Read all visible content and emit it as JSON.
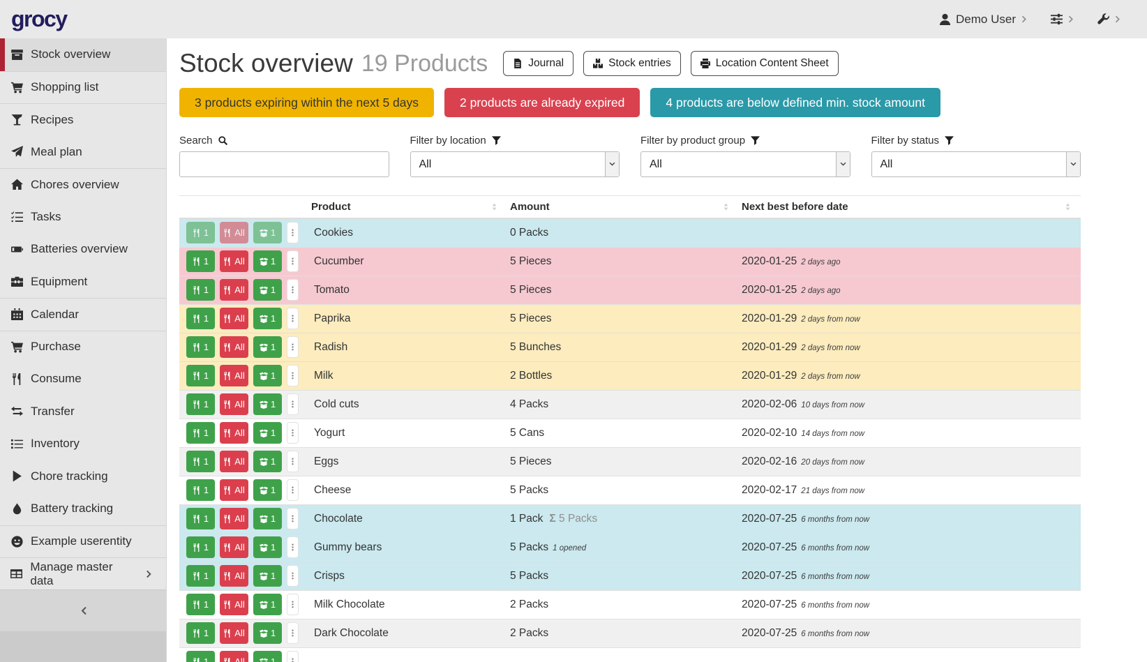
{
  "brand": {
    "logo_text": "grocy"
  },
  "topbar": {
    "user_label": "Demo User"
  },
  "sidebar": {
    "items": [
      {
        "label": "Stock overview",
        "icon": "box-icon",
        "active": true
      },
      {
        "label": "Shopping list",
        "icon": "cart-icon",
        "divider": true
      },
      {
        "label": "Recipes",
        "icon": "cocktail-icon",
        "divider": true
      },
      {
        "label": "Meal plan",
        "icon": "paper-plane-icon"
      },
      {
        "label": "Chores overview",
        "icon": "home-icon",
        "divider": true
      },
      {
        "label": "Tasks",
        "icon": "checklist-icon"
      },
      {
        "label": "Batteries overview",
        "icon": "battery-icon"
      },
      {
        "label": "Equipment",
        "icon": "toolbox-icon"
      },
      {
        "label": "Calendar",
        "icon": "calendar-icon",
        "divider": true
      },
      {
        "label": "Purchase",
        "icon": "cart-icon",
        "divider": true
      },
      {
        "label": "Consume",
        "icon": "utensils-icon"
      },
      {
        "label": "Transfer",
        "icon": "transfer-icon"
      },
      {
        "label": "Inventory",
        "icon": "list-icon"
      },
      {
        "label": "Chore tracking",
        "icon": "play-icon"
      },
      {
        "label": "Battery tracking",
        "icon": "droplet-icon"
      },
      {
        "label": "Example userentity",
        "icon": "smiley-icon",
        "divider": true
      },
      {
        "label": "Manage master data",
        "icon": "table-icon",
        "divider": true,
        "chevron": true
      }
    ]
  },
  "header": {
    "title": "Stock overview",
    "count": "19 Products",
    "buttons": [
      {
        "label": "Journal",
        "icon": "journal-icon"
      },
      {
        "label": "Stock entries",
        "icon": "boxes-icon"
      },
      {
        "label": "Location Content Sheet",
        "icon": "print-icon"
      }
    ]
  },
  "alerts": [
    {
      "text": "3 products expiring within the next 5 days",
      "bg": "#f0b400",
      "fg": "#353535"
    },
    {
      "text": "2 products are already expired",
      "bg": "#d9414f",
      "fg": "#ffffff"
    },
    {
      "text": "4 products are below defined min. stock amount",
      "bg": "#2a99a8",
      "fg": "#ffffff"
    }
  ],
  "filters": {
    "search_label": "Search",
    "search_value": "",
    "location_label": "Filter by location",
    "location_value": "All",
    "product_group_label": "Filter by product group",
    "product_group_value": "All",
    "status_label": "Filter by status",
    "status_value": "All"
  },
  "table": {
    "columns": [
      "Product",
      "Amount",
      "Next best before date"
    ],
    "actions": {
      "consume_one": "1",
      "consume_all": "All",
      "open_one": "1"
    },
    "rows": [
      {
        "product": "Cookies",
        "amount": "0 Packs",
        "amount_sum": "",
        "amount_note": "",
        "date": "",
        "date_rel": "",
        "status": "below_min",
        "muted": true
      },
      {
        "product": "Cucumber",
        "amount": "5 Pieces",
        "amount_sum": "",
        "amount_note": "",
        "date": "2020-01-25",
        "date_rel": "2 days ago",
        "status": "expired"
      },
      {
        "product": "Tomato",
        "amount": "5 Pieces",
        "amount_sum": "",
        "amount_note": "",
        "date": "2020-01-25",
        "date_rel": "2 days ago",
        "status": "expired"
      },
      {
        "product": "Paprika",
        "amount": "5 Pieces",
        "amount_sum": "",
        "amount_note": "",
        "date": "2020-01-29",
        "date_rel": "2 days from now",
        "status": "expiring"
      },
      {
        "product": "Radish",
        "amount": "5 Bunches",
        "amount_sum": "",
        "amount_note": "",
        "date": "2020-01-29",
        "date_rel": "2 days from now",
        "status": "expiring"
      },
      {
        "product": "Milk",
        "amount": "2 Bottles",
        "amount_sum": "",
        "amount_note": "",
        "date": "2020-01-29",
        "date_rel": "2 days from now",
        "status": "expiring"
      },
      {
        "product": "Cold cuts",
        "amount": "4 Packs",
        "amount_sum": "",
        "amount_note": "",
        "date": "2020-02-06",
        "date_rel": "10 days from now",
        "status": "none"
      },
      {
        "product": "Yogurt",
        "amount": "5 Cans",
        "amount_sum": "",
        "amount_note": "",
        "date": "2020-02-10",
        "date_rel": "14 days from now",
        "status": "none"
      },
      {
        "product": "Eggs",
        "amount": "5 Pieces",
        "amount_sum": "",
        "amount_note": "",
        "date": "2020-02-16",
        "date_rel": "20 days from now",
        "status": "none"
      },
      {
        "product": "Cheese",
        "amount": "5 Packs",
        "amount_sum": "",
        "amount_note": "",
        "date": "2020-02-17",
        "date_rel": "21 days from now",
        "status": "none"
      },
      {
        "product": "Chocolate",
        "amount": "1 Pack",
        "amount_sum": "5 Packs",
        "amount_note": "",
        "date": "2020-07-25",
        "date_rel": "6 months from now",
        "status": "below_min"
      },
      {
        "product": "Gummy bears",
        "amount": "5 Packs",
        "amount_sum": "",
        "amount_note": "1 opened",
        "date": "2020-07-25",
        "date_rel": "6 months from now",
        "status": "below_min"
      },
      {
        "product": "Crisps",
        "amount": "5 Packs",
        "amount_sum": "",
        "amount_note": "",
        "date": "2020-07-25",
        "date_rel": "6 months from now",
        "status": "below_min"
      },
      {
        "product": "Milk Chocolate",
        "amount": "2 Packs",
        "amount_sum": "",
        "amount_note": "",
        "date": "2020-07-25",
        "date_rel": "6 months from now",
        "status": "none"
      },
      {
        "product": "Dark Chocolate",
        "amount": "2 Packs",
        "amount_sum": "",
        "amount_note": "",
        "date": "2020-07-25",
        "date_rel": "6 months from now",
        "status": "none"
      },
      {
        "product": "",
        "amount": "",
        "amount_sum": "",
        "amount_note": "",
        "date": "",
        "date_rel": "",
        "status": "none"
      }
    ]
  },
  "colors": {
    "accent_red": "#ae2334",
    "logo": "#221d5d",
    "row_below_min": "#cbe9ef",
    "row_expired": "#f6c9d1",
    "row_expiring": "#fcecbe",
    "row_stripe": "#f0f0f0",
    "btn_consume_green": "#3fa24a",
    "btn_consume_all_red": "#db3f4d"
  }
}
